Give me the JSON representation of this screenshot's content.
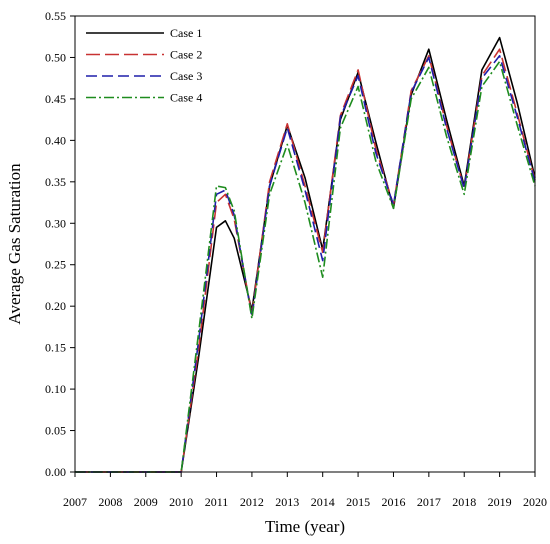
{
  "chart_data": {
    "type": "line",
    "title": "",
    "xlabel": "Time (year)",
    "ylabel": "Average Gas Saturation",
    "xlim": [
      2007,
      2020
    ],
    "ylim": [
      0,
      0.55
    ],
    "xticks": [
      2007,
      2008,
      2009,
      2010,
      2011,
      2012,
      2013,
      2014,
      2015,
      2016,
      2017,
      2018,
      2019,
      2020
    ],
    "yticks": [
      0.0,
      0.05,
      0.1,
      0.15,
      0.2,
      0.25,
      0.3,
      0.35,
      0.4,
      0.45,
      0.5,
      0.55
    ],
    "ytick_labels": [
      "0.00",
      "0.05",
      "0.10",
      "0.15",
      "0.20",
      "0.25",
      "0.30",
      "0.35",
      "0.40",
      "0.45",
      "0.50",
      "0.55"
    ],
    "grid": false,
    "legend_position": "top-left",
    "series": [
      {
        "name": "Case 1",
        "color": "#000000",
        "dash": "solid",
        "x": [
          2007,
          2010,
          2010.5,
          2011.0,
          2011.25,
          2011.5,
          2012.0,
          2012.5,
          2013.0,
          2013.5,
          2014.0,
          2014.5,
          2015.0,
          2015.5,
          2016.0,
          2016.5,
          2017.0,
          2017.5,
          2018.0,
          2018.5,
          2019.0,
          2019.5,
          2020
        ],
        "y": [
          0,
          0,
          0.14,
          0.295,
          0.303,
          0.282,
          0.195,
          0.345,
          0.418,
          0.355,
          0.268,
          0.425,
          0.482,
          0.398,
          0.318,
          0.455,
          0.51,
          0.425,
          0.345,
          0.485,
          0.524,
          0.445,
          0.355
        ]
      },
      {
        "name": "Case 2",
        "color": "#c83232",
        "dash": "long-dash",
        "x": [
          2007,
          2010,
          2010.5,
          2011.0,
          2011.25,
          2011.5,
          2012.0,
          2012.5,
          2013.0,
          2013.5,
          2014.0,
          2014.5,
          2015.0,
          2015.5,
          2016.0,
          2016.5,
          2017.0,
          2017.5,
          2018.0,
          2018.5,
          2019.0,
          2019.5,
          2020
        ],
        "y": [
          0,
          0,
          0.15,
          0.325,
          0.335,
          0.305,
          0.19,
          0.35,
          0.42,
          0.345,
          0.265,
          0.43,
          0.485,
          0.39,
          0.322,
          0.46,
          0.502,
          0.418,
          0.342,
          0.478,
          0.51,
          0.432,
          0.352
        ]
      },
      {
        "name": "Case 3",
        "color": "#1e1eaa",
        "dash": "dash",
        "x": [
          2007,
          2010,
          2010.5,
          2011.0,
          2011.25,
          2011.5,
          2012.0,
          2012.5,
          2013.0,
          2013.5,
          2014.0,
          2014.5,
          2015.0,
          2015.5,
          2016.0,
          2016.5,
          2017.0,
          2017.5,
          2018.0,
          2018.5,
          2019.0,
          2019.5,
          2020
        ],
        "y": [
          0,
          0,
          0.16,
          0.335,
          0.34,
          0.31,
          0.187,
          0.345,
          0.415,
          0.34,
          0.255,
          0.428,
          0.478,
          0.385,
          0.322,
          0.458,
          0.5,
          0.415,
          0.342,
          0.475,
          0.502,
          0.428,
          0.35
        ]
      },
      {
        "name": "Case 4",
        "color": "#1e8c1e",
        "dash": "dash-dot",
        "x": [
          2007,
          2010,
          2010.5,
          2011.0,
          2011.25,
          2011.5,
          2012.0,
          2012.5,
          2013.0,
          2013.5,
          2014.0,
          2014.5,
          2015.0,
          2015.5,
          2016.0,
          2016.5,
          2017.0,
          2017.5,
          2018.0,
          2018.5,
          2019.0,
          2019.5,
          2020
        ],
        "y": [
          0,
          0,
          0.17,
          0.345,
          0.343,
          0.315,
          0.185,
          0.335,
          0.395,
          0.325,
          0.235,
          0.415,
          0.465,
          0.375,
          0.318,
          0.45,
          0.488,
          0.405,
          0.335,
          0.465,
          0.495,
          0.418,
          0.345
        ]
      }
    ]
  }
}
